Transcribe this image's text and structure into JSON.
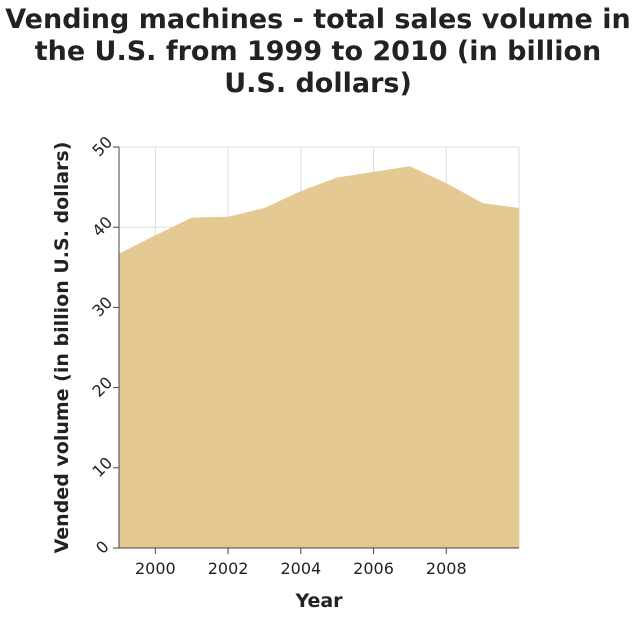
{
  "chart_data": {
    "type": "area",
    "title": "Vending machines - total sales volume in the U.S. from 1999 to 2010 (in billion U.S. dollars)",
    "xlabel": "Year",
    "ylabel": "Vended volume (in billion U.S. dollars)",
    "x": [
      1999,
      2000,
      2001,
      2002,
      2003,
      2004,
      2005,
      2006,
      2007,
      2008,
      2009,
      2010
    ],
    "values": [
      36.7,
      39.0,
      41.2,
      41.3,
      42.4,
      44.5,
      46.2,
      46.9,
      47.6,
      45.5,
      43.0,
      42.4
    ],
    "xlim": [
      1999,
      2010
    ],
    "ylim": [
      0,
      50
    ],
    "xticks": [
      "2000",
      "2002",
      "2004",
      "2006",
      "2008"
    ],
    "yticks": [
      "0",
      "10",
      "20",
      "30",
      "40",
      "50"
    ],
    "grid": true,
    "fill_color": "#e5c993"
  }
}
